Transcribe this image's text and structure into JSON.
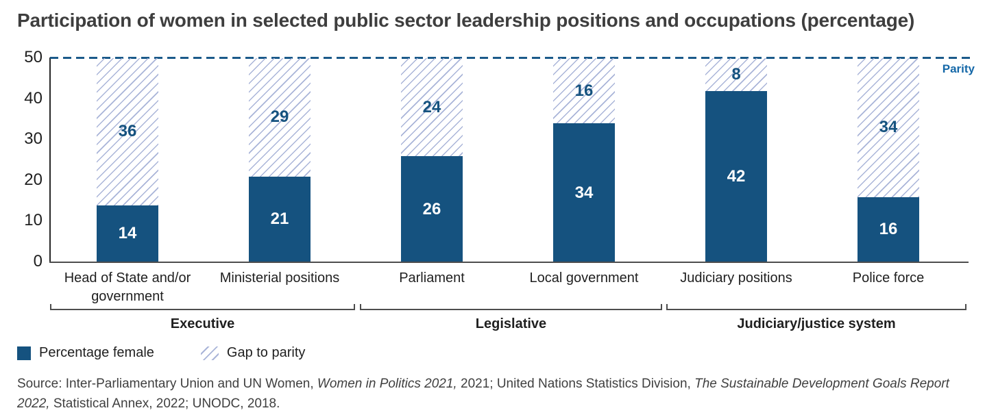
{
  "title": "Participation of women in selected public sector leadership positions and occupations (percentage)",
  "parity_label": "Parity",
  "chart_data": {
    "type": "bar",
    "stacked": true,
    "title": "Participation of women in selected public sector leadership positions and occupations (percentage)",
    "categories": [
      "Head of State and/or government",
      "Ministerial positions",
      "Parliament",
      "Local government",
      "Judiciary positions",
      "Police force"
    ],
    "series": [
      {
        "name": "Percentage female",
        "values": [
          14,
          21,
          26,
          34,
          42,
          16
        ]
      },
      {
        "name": "Gap to parity",
        "values": [
          36,
          29,
          24,
          16,
          8,
          34
        ]
      }
    ],
    "groups": [
      {
        "label": "Executive",
        "categories": [
          "Head of State and/or government",
          "Ministerial positions"
        ]
      },
      {
        "label": "Legislative",
        "categories": [
          "Parliament",
          "Local government"
        ]
      },
      {
        "label": "Judiciary/justice system",
        "categories": [
          "Judiciary positions",
          "Police force"
        ]
      }
    ],
    "ylim": [
      0,
      50
    ],
    "yticks": [
      0,
      10,
      20,
      30,
      40,
      50
    ],
    "parity_reference_line": 50,
    "parity_annotation": "Parity",
    "grid": false,
    "legend_position": "bottom-left"
  },
  "legend": {
    "items": [
      {
        "label": "Percentage female",
        "swatch": "solid"
      },
      {
        "label": "Gap to parity",
        "swatch": "hatch"
      }
    ]
  },
  "colors": {
    "bar_fill": "#15527F",
    "hatch_line": "#A9B4D8",
    "parity_line": "#1B5A8A",
    "parity_label": "#1568A8",
    "value_label": "#FFFFFF",
    "gap_label": "#15527F",
    "title": "#3E3E3E",
    "axis": "#4D4D4D",
    "text": "#1F1F1F",
    "source": "#3F3F3F"
  },
  "source": {
    "segments": [
      {
        "text": "Source:  Inter-Parliamentary Union and UN Women, ",
        "italic": false
      },
      {
        "text": "Women in Politics 2021,",
        "italic": true
      },
      {
        "text": " 2021; United Nations Statistics Division, ",
        "italic": false
      },
      {
        "text": "The Sustainable Development Goals Report 2022,",
        "italic": true
      },
      {
        "text": " Statistical Annex, 2022; UNODC, 2018.",
        "italic": false
      }
    ]
  }
}
